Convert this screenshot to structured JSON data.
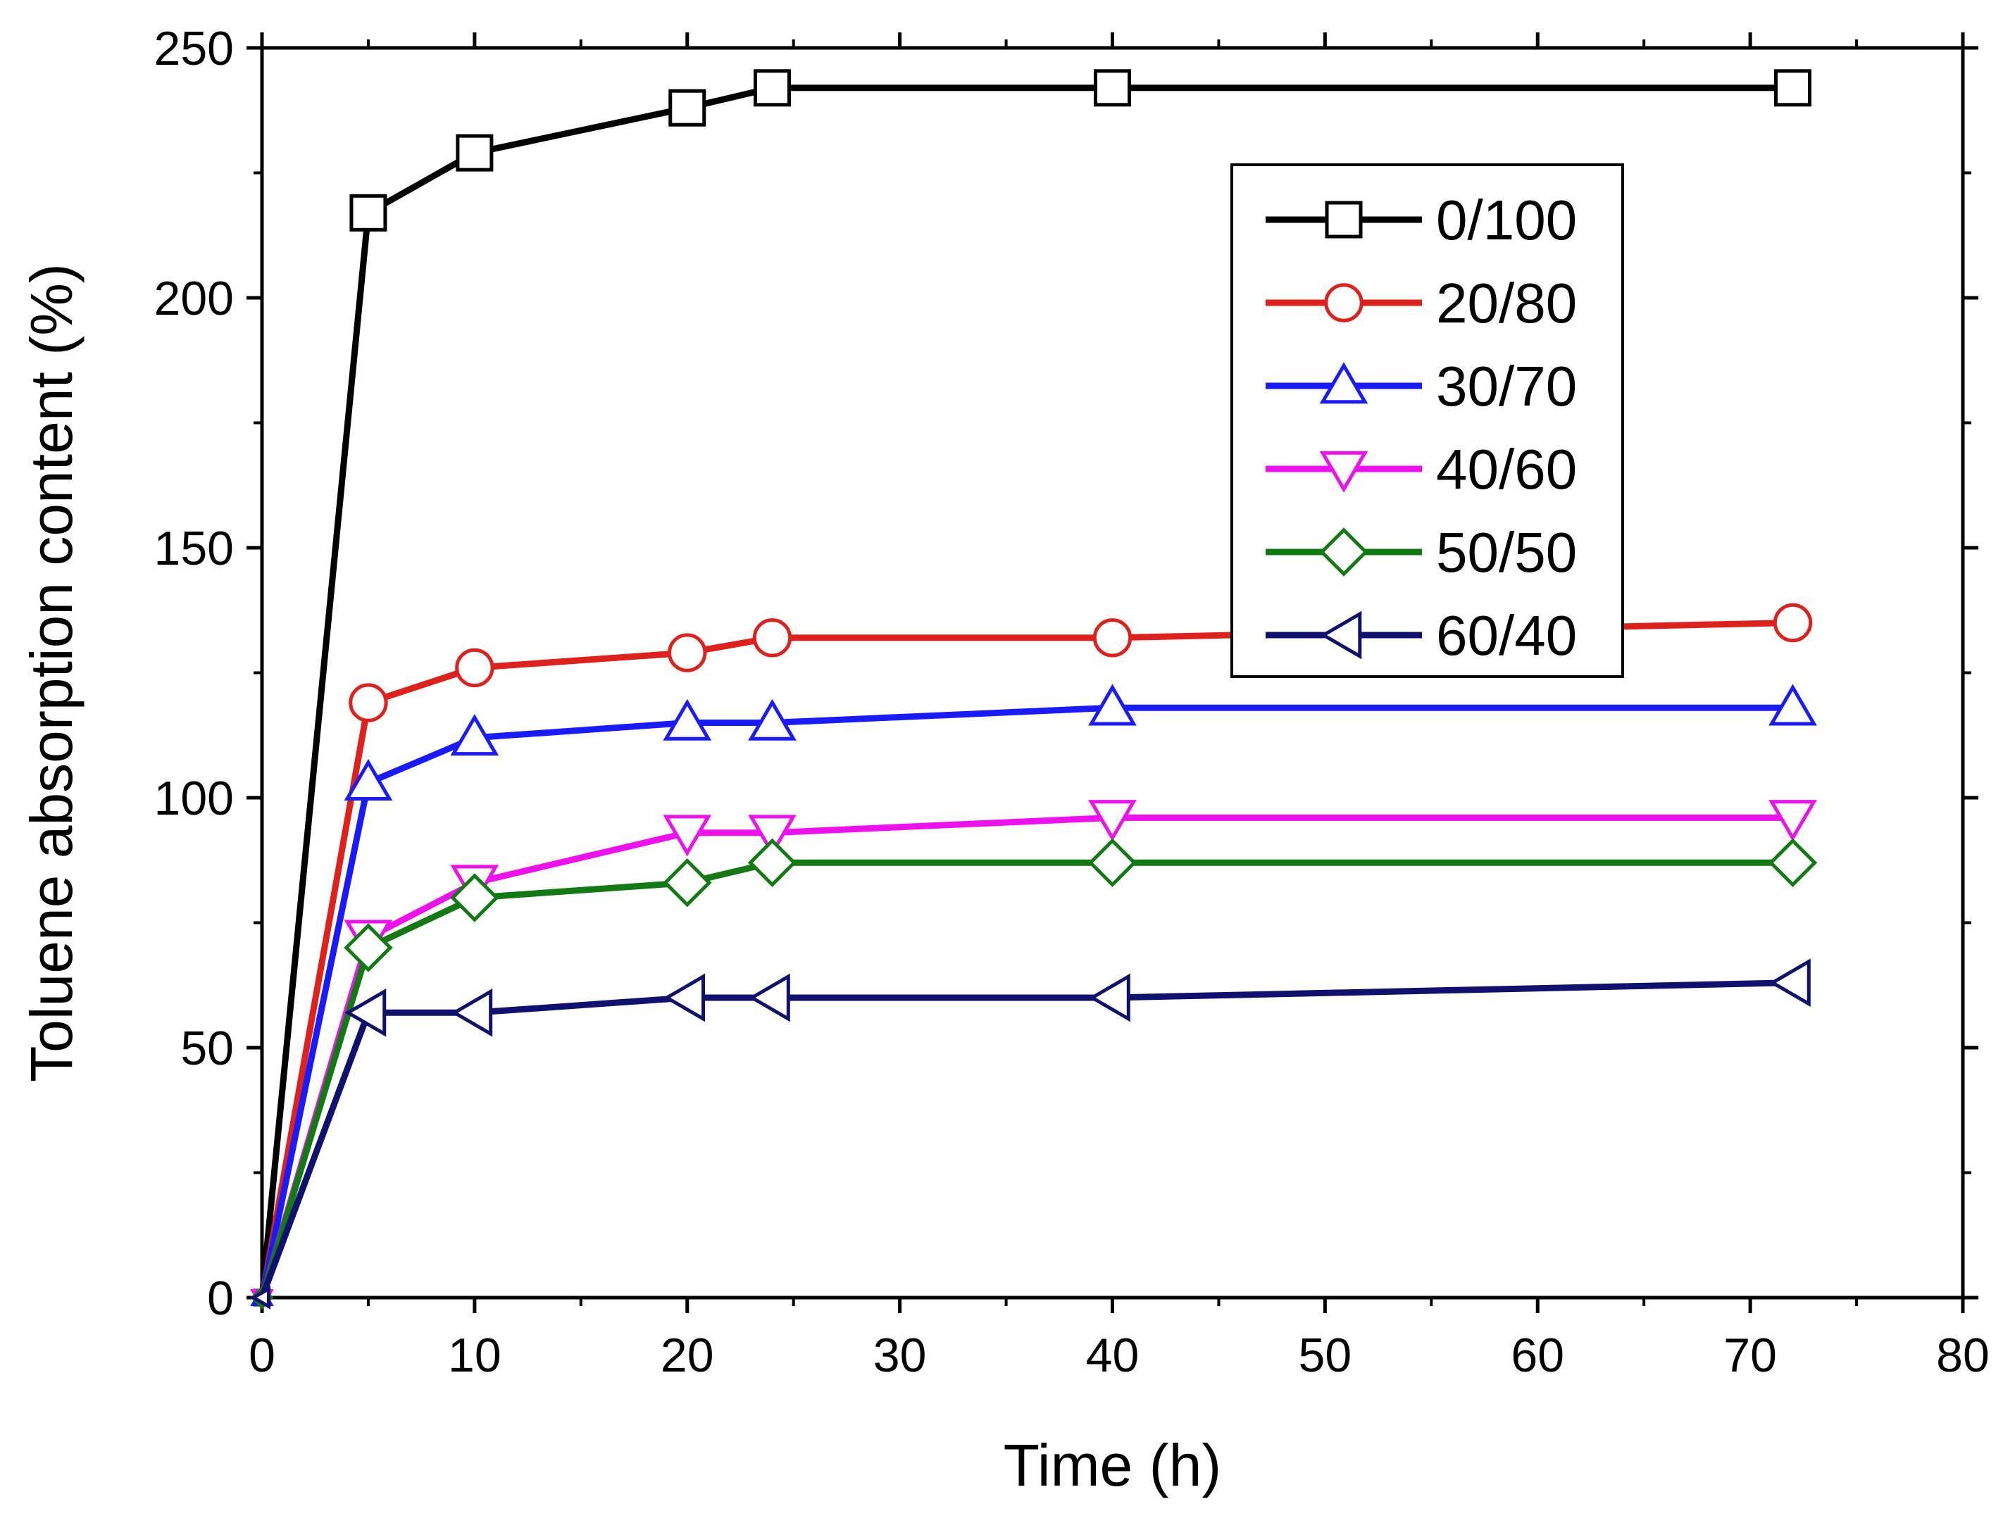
{
  "chart_data": {
    "type": "line",
    "title": "",
    "xlabel": "Time (h)",
    "ylabel": "Toluene absorption content (%)",
    "xlim": [
      0,
      80
    ],
    "ylim": [
      0,
      250
    ],
    "xticks": [
      0,
      10,
      20,
      30,
      40,
      50,
      60,
      70,
      80
    ],
    "yticks": [
      0,
      50,
      100,
      150,
      200,
      250
    ],
    "legend_position": "top-right",
    "grid": false,
    "series": [
      {
        "name": "0/100",
        "color": "#000000",
        "marker": "square",
        "x": [
          0,
          5,
          10,
          20,
          24,
          40,
          72
        ],
        "y": [
          0,
          217,
          229,
          238,
          242,
          242,
          242
        ]
      },
      {
        "name": "20/80",
        "color": "#e0201b",
        "marker": "circle",
        "x": [
          0,
          5,
          10,
          20,
          24,
          40,
          72
        ],
        "y": [
          0,
          119,
          126,
          129,
          132,
          132,
          135
        ]
      },
      {
        "name": "30/70",
        "color": "#1a1aff",
        "marker": "triangle-up",
        "x": [
          0,
          5,
          10,
          20,
          24,
          40,
          72
        ],
        "y": [
          0,
          103,
          112,
          115,
          115,
          118,
          118
        ]
      },
      {
        "name": "40/60",
        "color": "#ee10ee",
        "marker": "triangle-down",
        "x": [
          0,
          5,
          10,
          20,
          24,
          40,
          72
        ],
        "y": [
          0,
          72,
          83,
          93,
          93,
          96,
          96
        ]
      },
      {
        "name": "50/50",
        "color": "#127a12",
        "marker": "diamond",
        "x": [
          0,
          5,
          10,
          20,
          24,
          40,
          72
        ],
        "y": [
          0,
          70,
          80,
          83,
          87,
          87,
          87
        ]
      },
      {
        "name": "60/40",
        "color": "#10106e",
        "marker": "triangle-left",
        "x": [
          0,
          5,
          10,
          20,
          24,
          40,
          72
        ],
        "y": [
          0,
          57,
          57,
          60,
          60,
          60,
          63
        ]
      }
    ]
  }
}
